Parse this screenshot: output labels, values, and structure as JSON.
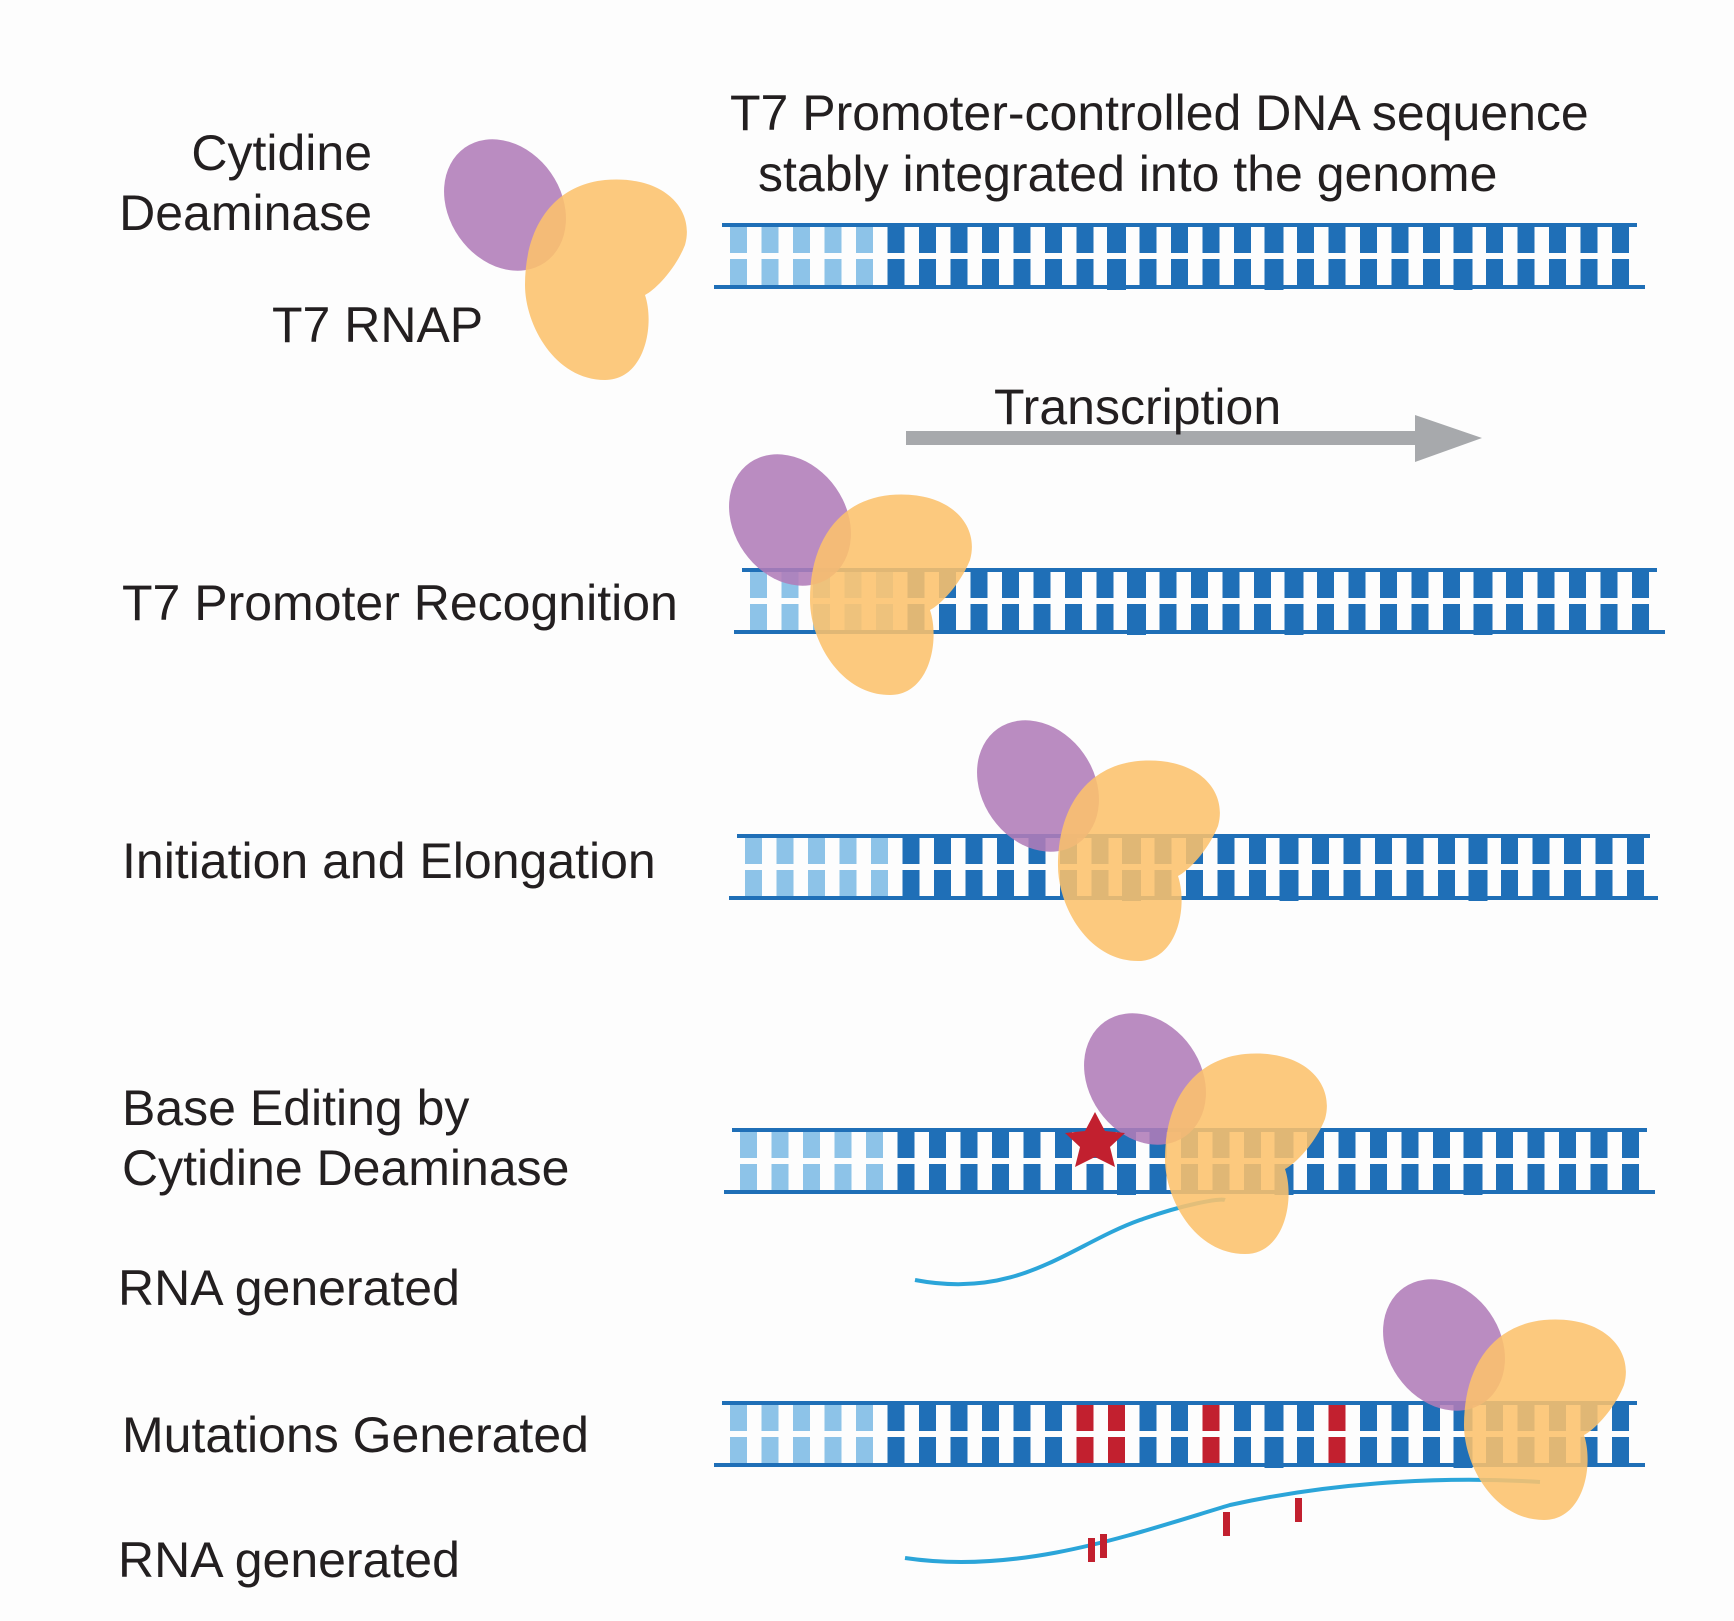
{
  "legend": {
    "enzyme_label_1": "Cytidine",
    "enzyme_label_2": "Deaminase",
    "rnap_label": "T7 RNAP"
  },
  "header": {
    "line1": "T7 Promoter-controlled DNA sequence",
    "line2": "stably integrated into the genome"
  },
  "transcription": {
    "label": "Transcription"
  },
  "steps": [
    {
      "label": "T7 Promoter Recognition"
    },
    {
      "label": "Initiation and Elongation"
    },
    {
      "label_line1": "Base Editing by",
      "label_line2": "Cytidine Deaminase",
      "rna_label": "RNA generated"
    },
    {
      "label": "Mutations Generated",
      "rna_label": "RNA generated"
    }
  ],
  "colors": {
    "deaminase": "#b07cb8",
    "rnap": "#fcc16c",
    "dna": "#1f6fb7",
    "promoter": "#8dc3e8",
    "mutation": "#c2202f",
    "rna": "#2ba5d9",
    "arrow": "#a7a9ac",
    "text": "#231f20"
  }
}
